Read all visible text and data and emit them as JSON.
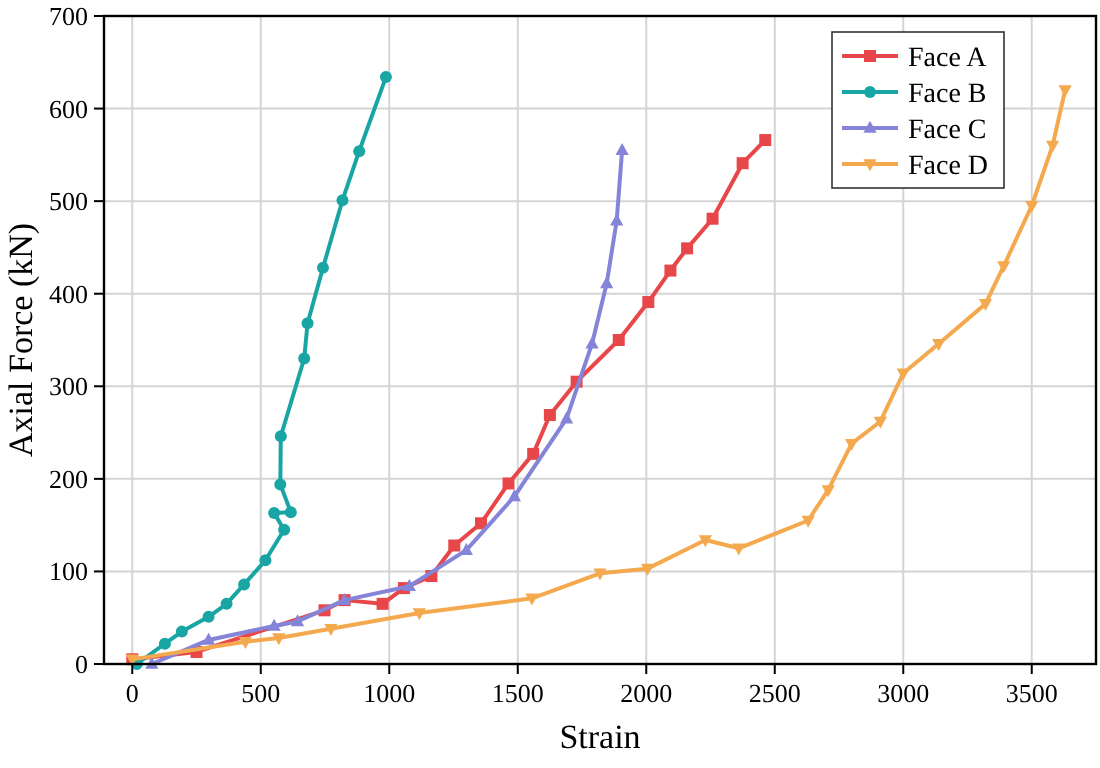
{
  "chart_data": {
    "type": "line",
    "xlabel": "Strain",
    "ylabel": "Axial Force (kN)",
    "xlim": [
      -110,
      3750
    ],
    "ylim": [
      0,
      700
    ],
    "xticks": [
      0,
      500,
      1000,
      1500,
      2000,
      2500,
      3000,
      3500
    ],
    "yticks": [
      0,
      100,
      200,
      300,
      400,
      500,
      600,
      700
    ],
    "grid": true,
    "legend": "top right",
    "series": [
      {
        "name": "Face A",
        "color": "#e8474a",
        "marker": "square",
        "x": [
          0,
          250,
          748,
          826,
          974,
          1057,
          1164,
          1253,
          1357,
          1464,
          1560,
          1625,
          1729,
          1893,
          2008,
          2094,
          2159,
          2258,
          2375,
          2463
        ],
        "values": [
          5,
          13,
          58,
          69,
          65,
          82,
          95,
          128,
          152,
          195,
          227,
          269,
          305,
          350,
          391,
          425,
          449,
          481,
          541,
          566
        ]
      },
      {
        "name": "Face B",
        "color": "#1aa5a5",
        "marker": "circle",
        "x": [
          18,
          127,
          193,
          297,
          367,
          435,
          518,
          591,
          552,
          617,
          576,
          578,
          669,
          682,
          742,
          818,
          883,
          987
        ],
        "values": [
          0,
          22,
          35,
          51,
          65,
          86,
          112,
          145,
          163,
          164,
          194,
          246,
          330,
          368,
          428,
          501,
          554,
          634
        ]
      },
      {
        "name": "Face C",
        "color": "#8484d8",
        "marker": "triangle",
        "x": [
          76,
          297,
          552,
          643,
          826,
          1078,
          1300,
          1487,
          1690,
          1789,
          1846,
          1885,
          1906
        ],
        "values": [
          0,
          26,
          41,
          46,
          69,
          84,
          123,
          181,
          265,
          346,
          411,
          479,
          555
        ]
      },
      {
        "name": "Face D",
        "color": "#f5a94e",
        "marker": "triangle-down",
        "x": [
          0,
          440,
          570,
          773,
          1117,
          1555,
          1820,
          2005,
          2230,
          2360,
          2630,
          2708,
          2799,
          2911,
          3000,
          3138,
          3320,
          3391,
          3500,
          3581,
          3630
        ],
        "values": [
          5,
          24,
          28,
          38,
          55,
          71,
          98,
          103,
          134,
          125,
          155,
          188,
          238,
          262,
          314,
          346,
          389,
          430,
          495,
          560,
          620
        ]
      }
    ]
  }
}
